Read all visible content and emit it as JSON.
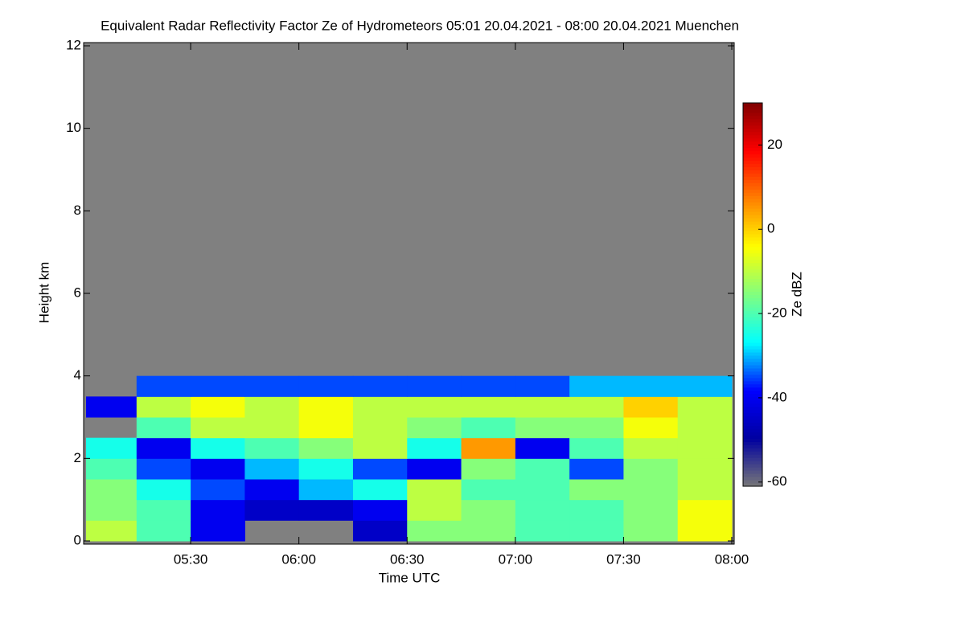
{
  "chart_data": {
    "type": "heatmap",
    "title": "Equivalent Radar Reflectivity Factor Ze of Hydrometeors   05:01 20.04.2021 - 08:00 20.04.2021 Muenchen",
    "xlabel": "Time UTC",
    "ylabel": "Height km",
    "colorbar_label": "Ze dBZ",
    "xlim": [
      "05:01",
      "08:00"
    ],
    "xticks": [
      "05:30",
      "06:00",
      "06:30",
      "07:00",
      "07:30",
      "08:00"
    ],
    "ylim": [
      0,
      12
    ],
    "yticks": [
      0,
      2,
      4,
      6,
      8,
      10,
      12
    ],
    "zlim": [
      -61,
      30
    ],
    "zticks": [
      -60,
      -40,
      -20,
      0,
      20
    ],
    "colormap": [
      "#787878",
      "#0000a0",
      "#0000ff",
      "#00ffff",
      "#80ff80",
      "#ffff00",
      "#ff8000",
      "#ff0000",
      "#800000"
    ],
    "background": "#808080",
    "x_bins": [
      "05:01",
      "05:15",
      "05:30",
      "05:45",
      "06:00",
      "06:15",
      "06:30",
      "06:45",
      "07:00",
      "07:15",
      "07:30",
      "07:45",
      "08:00"
    ],
    "y_bins": [
      0,
      0.5,
      1,
      1.5,
      2,
      2.5,
      3,
      3.5,
      4
    ],
    "values": [
      [
        -10,
        -20,
        -40,
        null,
        null,
        -45,
        -15,
        -15,
        -20,
        -20,
        -15,
        -5
      ],
      [
        -15,
        -20,
        -40,
        -45,
        -45,
        -40,
        -10,
        -15,
        -20,
        -20,
        -15,
        -5
      ],
      [
        -15,
        -25,
        -35,
        -40,
        -30,
        -25,
        -10,
        -20,
        -20,
        -15,
        -15,
        -10
      ],
      [
        -20,
        -35,
        -40,
        -30,
        -25,
        -35,
        -40,
        -15,
        -20,
        -35,
        -15,
        -10
      ],
      [
        -25,
        -40,
        -25,
        -20,
        -15,
        -10,
        -25,
        5,
        -40,
        -20,
        -10,
        -10
      ],
      [
        null,
        -20,
        -10,
        -10,
        -5,
        -10,
        -15,
        -20,
        -15,
        -15,
        -5,
        -10
      ],
      [
        -40,
        -10,
        -5,
        -10,
        -5,
        -10,
        -10,
        -10,
        -10,
        -10,
        0,
        -10
      ],
      [
        null,
        -35,
        -35,
        -35,
        -35,
        -35,
        -35,
        -35,
        -35,
        -30,
        -30,
        -30
      ]
    ]
  }
}
